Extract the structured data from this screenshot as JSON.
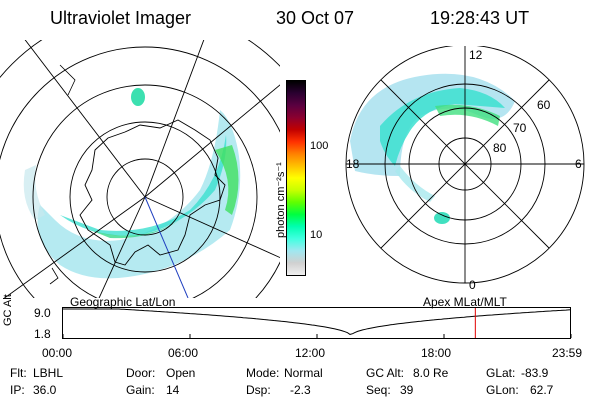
{
  "header": {
    "instrument": "Ultraviolet Imager",
    "date": "30 Oct 07",
    "time": "19:28:43 UT"
  },
  "geo_map": {
    "caption": "Geographic Lat/Lon"
  },
  "colorbar": {
    "unit_label": "photon cm⁻²s⁻¹",
    "tick_100": "100",
    "tick_10": "10",
    "colors": [
      "#000000",
      "#2a0030",
      "#5a0040",
      "#8a0030",
      "#c00000",
      "#ff3000",
      "#ff8000",
      "#ffc000",
      "#ffff00",
      "#c8ff00",
      "#60ff00",
      "#00ff40",
      "#00ffb0",
      "#40ffe0",
      "#a0e8f0",
      "#d0d0d0",
      "#f0f0f0"
    ]
  },
  "apex_map": {
    "caption": "Apex MLat/MLT",
    "mlt_12": "12",
    "mlt_18": "18",
    "mlt_6": "6",
    "mlt_0": "0",
    "lat_60": "60",
    "lat_70": "70",
    "lat_80": "80"
  },
  "timeline": {
    "ylabel": "GC Alt",
    "ytick_top": "9.0",
    "ytick_bottom": "1.8",
    "ticks": [
      "00:00",
      "06:00",
      "12:00",
      "18:00",
      "23:59"
    ],
    "marker_hour": 19.48
  },
  "info": {
    "flt_label": "Flt:",
    "flt_value": "LBHL",
    "ip_label": "IP:",
    "ip_value": "36.0",
    "door_label": "Door:",
    "door_value": "Open",
    "gain_label": "Gain:",
    "gain_value": "14",
    "mode_label": "Mode:",
    "mode_value": "Normal",
    "dsp_label": "Dsp:",
    "dsp_value": "-2.3",
    "gcalt_label": "GC Alt:",
    "gcalt_value": "8.0 Re",
    "seq_label": "Seq:",
    "seq_value": "39",
    "glat_label": "GLat:",
    "glat_value": "-83.9",
    "glon_label": "GLon:",
    "glon_value": "62.7"
  }
}
